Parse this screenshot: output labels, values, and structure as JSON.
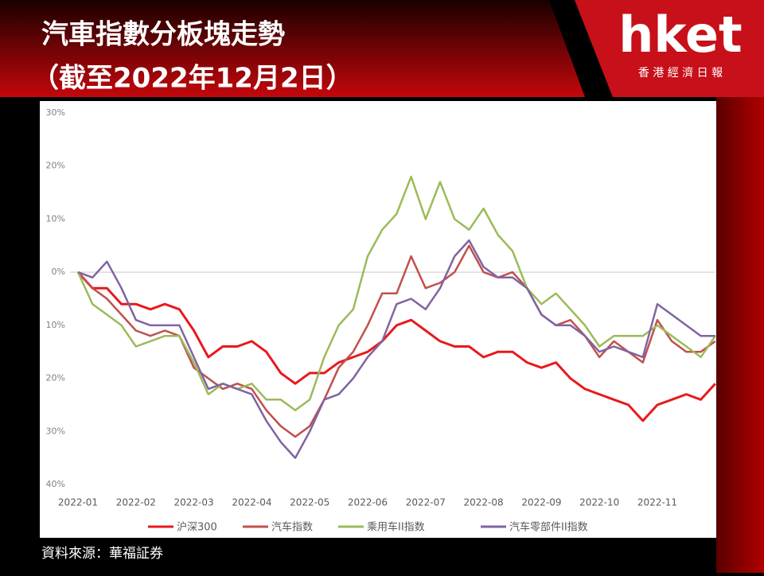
{
  "header": {
    "title": "汽車指數分板塊走勢",
    "subtitle": "（截至2022年12月2日）",
    "brand": "hket",
    "brand_name": "香 港 經 濟 日 報"
  },
  "source": "資料來源：華福証券",
  "chart_data": {
    "type": "line",
    "categories": [
      "2022-01",
      null,
      null,
      null,
      "2022-02",
      null,
      null,
      null,
      "2022-03",
      null,
      null,
      null,
      "2022-04",
      null,
      null,
      null,
      "2022-05",
      null,
      null,
      null,
      "2022-06",
      null,
      null,
      null,
      "2022-07",
      null,
      null,
      null,
      "2022-08",
      null,
      null,
      null,
      "2022-09",
      null,
      null,
      null,
      "2022-10",
      null,
      null,
      null,
      "2022-11",
      null,
      null,
      null,
      null
    ],
    "ylim": [
      -40,
      30
    ],
    "yticks": [
      {
        "value": 30,
        "label": "30%"
      },
      {
        "value": 20,
        "label": "20%"
      },
      {
        "value": 10,
        "label": "10%"
      },
      {
        "value": 0,
        "label": "0%"
      },
      {
        "value": -10,
        "label": "10%"
      },
      {
        "value": -20,
        "label": "20%"
      },
      {
        "value": -30,
        "label": "30%"
      },
      {
        "value": -40,
        "label": "40%"
      }
    ],
    "zero_line": true,
    "legend": "bottom",
    "series": [
      {
        "name": "沪深300",
        "color": "#e8191d",
        "values": [
          0,
          -3,
          -3,
          -6,
          -6,
          -7,
          -6,
          -7,
          -11,
          -16,
          -14,
          -14,
          -13,
          -15,
          -19,
          -21,
          -19,
          -19,
          -17,
          -16,
          -15,
          -13,
          -10,
          -9,
          -11,
          -13,
          -14,
          -14,
          -16,
          -15,
          -15,
          -17,
          -18,
          -17,
          -20,
          -22,
          -23,
          -24,
          -25,
          -28,
          -25,
          -24,
          -23,
          -24,
          -21
        ]
      },
      {
        "name": "汽车指数",
        "color": "#c0504d",
        "values": [
          0,
          -3,
          -5,
          -8,
          -11,
          -12,
          -11,
          -12,
          -18,
          -20,
          -22,
          -21,
          -22,
          -26,
          -29,
          -31,
          -29,
          -24,
          -18,
          -15,
          -10,
          -4,
          -4,
          3,
          -3,
          -2,
          0,
          5,
          0,
          -1,
          0,
          -3,
          -8,
          -10,
          -9,
          -12,
          -16,
          -13,
          -15,
          -17,
          -9,
          -13,
          -15,
          -15,
          -13
        ]
      },
      {
        "name": "乘用车II指数",
        "color": "#9bbb59",
        "values": [
          0,
          -6,
          -8,
          -10,
          -14,
          -13,
          -12,
          -12,
          -17,
          -23,
          -21,
          -22,
          -21,
          -24,
          -24,
          -26,
          -24,
          -16,
          -10,
          -7,
          3,
          8,
          11,
          18,
          10,
          17,
          10,
          8,
          12,
          7,
          4,
          -3,
          -6,
          -4,
          -7,
          -10,
          -14,
          -12,
          -12,
          -12,
          -10,
          -12,
          -14,
          -16,
          -12
        ]
      },
      {
        "name": "汽车零部件II指数",
        "color": "#8064a2",
        "values": [
          0,
          -1,
          2,
          -3,
          -9,
          -10,
          -10,
          -10,
          -16,
          -22,
          -21,
          -22,
          -23,
          -28,
          -32,
          -35,
          -30,
          -24,
          -23,
          -20,
          -16,
          -13,
          -6,
          -5,
          -7,
          -3,
          3,
          6,
          1,
          -1,
          -1,
          -3,
          -8,
          -10,
          -10,
          -12,
          -15,
          -14,
          -15,
          -16,
          -6,
          -8,
          -10,
          -12,
          -12
        ]
      }
    ]
  }
}
